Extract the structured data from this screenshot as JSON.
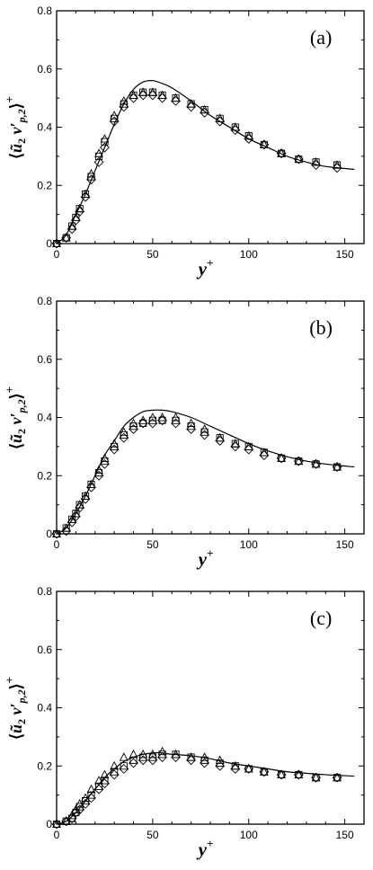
{
  "figure": {
    "panels": [
      {
        "label": "(a)",
        "xlabel": "y",
        "xlabel_sup": "+",
        "ylabel": "⟨ũ₂ v′p,2⟩⁺"
      },
      {
        "label": "(b)",
        "xlabel": "y",
        "xlabel_sup": "+",
        "ylabel": "⟨ũ₂ v′p,2⟩⁺"
      },
      {
        "label": "(c)",
        "xlabel": "y",
        "xlabel_sup": "+",
        "ylabel": "⟨ũ₂ v′p,2⟩⁺"
      }
    ]
  },
  "chart_data": [
    {
      "type": "line",
      "label": "(a)",
      "xlabel": "y+",
      "ylabel": "⟨ũ₂ v′p,2⟩+",
      "xlim": [
        0,
        160
      ],
      "ylim": [
        0,
        0.8
      ],
      "xticks": [
        "0",
        "50",
        "100",
        "150"
      ],
      "yticks": [
        "0",
        "0.2",
        "0.4",
        "0.6",
        "0.8"
      ],
      "grid": false,
      "series": [
        {
          "style": "solid line",
          "x": [
            0,
            5,
            10,
            15,
            20,
            25,
            30,
            35,
            40,
            45,
            50,
            55,
            60,
            70,
            80,
            90,
            100,
            110,
            120,
            130,
            140,
            155
          ],
          "y": [
            0,
            0.03,
            0.1,
            0.17,
            0.25,
            0.33,
            0.41,
            0.48,
            0.53,
            0.555,
            0.56,
            0.55,
            0.535,
            0.49,
            0.44,
            0.4,
            0.36,
            0.33,
            0.3,
            0.28,
            0.265,
            0.255
          ]
        },
        {
          "style": "square markers",
          "x": [
            0,
            5,
            8,
            10,
            12,
            15,
            18,
            22,
            25,
            30,
            35,
            40,
            45,
            50,
            55,
            62,
            70,
            77,
            85,
            93,
            100,
            108,
            117,
            126,
            135,
            146
          ],
          "y": [
            0,
            0.02,
            0.06,
            0.09,
            0.12,
            0.17,
            0.23,
            0.3,
            0.35,
            0.43,
            0.48,
            0.51,
            0.52,
            0.52,
            0.51,
            0.5,
            0.48,
            0.46,
            0.43,
            0.4,
            0.37,
            0.34,
            0.31,
            0.29,
            0.28,
            0.27
          ]
        },
        {
          "style": "triangle markers",
          "x": [
            0,
            5,
            8,
            10,
            12,
            15,
            18,
            22,
            25,
            30,
            35,
            40,
            45,
            50,
            55,
            62,
            70,
            77,
            85,
            93,
            100,
            108,
            117,
            126,
            135,
            146
          ],
          "y": [
            0,
            0.02,
            0.06,
            0.09,
            0.12,
            0.17,
            0.24,
            0.31,
            0.36,
            0.44,
            0.49,
            0.51,
            0.52,
            0.52,
            0.51,
            0.5,
            0.48,
            0.46,
            0.43,
            0.4,
            0.37,
            0.34,
            0.31,
            0.29,
            0.28,
            0.27
          ]
        },
        {
          "style": "diamond markers",
          "x": [
            0,
            5,
            8,
            10,
            12,
            15,
            18,
            22,
            25,
            30,
            35,
            40,
            45,
            50,
            55,
            62,
            70,
            77,
            85,
            93,
            100,
            108,
            117,
            126,
            135,
            146
          ],
          "y": [
            0,
            0.02,
            0.05,
            0.08,
            0.11,
            0.16,
            0.22,
            0.28,
            0.33,
            0.42,
            0.47,
            0.5,
            0.51,
            0.51,
            0.5,
            0.49,
            0.47,
            0.45,
            0.42,
            0.39,
            0.36,
            0.34,
            0.31,
            0.29,
            0.27,
            0.26
          ]
        }
      ]
    },
    {
      "type": "line",
      "label": "(b)",
      "xlabel": "y+",
      "ylabel": "⟨ũ₂ v′p,2⟩+",
      "xlim": [
        0,
        160
      ],
      "ylim": [
        0,
        0.8
      ],
      "xticks": [
        "0",
        "50",
        "100",
        "150"
      ],
      "yticks": [
        "0",
        "0.2",
        "0.4",
        "0.6",
        "0.8"
      ],
      "grid": false,
      "series": [
        {
          "style": "solid line",
          "x": [
            0,
            5,
            10,
            15,
            20,
            25,
            30,
            35,
            40,
            45,
            50,
            55,
            60,
            70,
            80,
            90,
            100,
            110,
            120,
            130,
            140,
            155
          ],
          "y": [
            0,
            0.02,
            0.07,
            0.13,
            0.2,
            0.27,
            0.32,
            0.37,
            0.4,
            0.42,
            0.425,
            0.425,
            0.42,
            0.4,
            0.37,
            0.34,
            0.31,
            0.285,
            0.265,
            0.25,
            0.24,
            0.23
          ]
        },
        {
          "style": "square markers",
          "x": [
            0,
            5,
            8,
            10,
            12,
            15,
            18,
            22,
            25,
            30,
            35,
            40,
            45,
            50,
            55,
            62,
            70,
            77,
            85,
            93,
            100,
            108,
            117,
            126,
            135,
            146
          ],
          "y": [
            0,
            0.02,
            0.05,
            0.07,
            0.1,
            0.13,
            0.17,
            0.21,
            0.25,
            0.3,
            0.34,
            0.37,
            0.38,
            0.39,
            0.39,
            0.39,
            0.37,
            0.35,
            0.33,
            0.31,
            0.3,
            0.28,
            0.26,
            0.25,
            0.24,
            0.23
          ]
        },
        {
          "style": "triangle markers",
          "x": [
            0,
            5,
            8,
            10,
            12,
            15,
            18,
            22,
            25,
            30,
            35,
            40,
            45,
            50,
            55,
            62,
            70,
            77,
            85,
            93,
            100,
            108,
            117,
            126,
            135,
            146
          ],
          "y": [
            0,
            0.02,
            0.05,
            0.07,
            0.1,
            0.13,
            0.17,
            0.22,
            0.26,
            0.31,
            0.35,
            0.38,
            0.39,
            0.4,
            0.4,
            0.4,
            0.38,
            0.36,
            0.33,
            0.31,
            0.3,
            0.28,
            0.26,
            0.25,
            0.24,
            0.23
          ]
        },
        {
          "style": "diamond markers",
          "x": [
            0,
            5,
            8,
            10,
            12,
            15,
            18,
            22,
            25,
            30,
            35,
            40,
            45,
            50,
            55,
            62,
            70,
            77,
            85,
            93,
            100,
            108,
            117,
            126,
            135,
            146
          ],
          "y": [
            0,
            0.01,
            0.04,
            0.06,
            0.09,
            0.12,
            0.16,
            0.2,
            0.24,
            0.29,
            0.33,
            0.36,
            0.38,
            0.38,
            0.39,
            0.38,
            0.36,
            0.34,
            0.32,
            0.3,
            0.29,
            0.27,
            0.26,
            0.25,
            0.24,
            0.23
          ]
        }
      ]
    },
    {
      "type": "line",
      "label": "(c)",
      "xlabel": "y+",
      "ylabel": "⟨ũ₂ v′p,2⟩+",
      "xlim": [
        0,
        160
      ],
      "ylim": [
        0,
        0.8
      ],
      "xticks": [
        "0",
        "50",
        "100",
        "150"
      ],
      "yticks": [
        "0",
        "0.2",
        "0.4",
        "0.6",
        "0.8"
      ],
      "grid": false,
      "series": [
        {
          "style": "solid line",
          "x": [
            0,
            5,
            10,
            15,
            20,
            25,
            30,
            35,
            40,
            45,
            50,
            55,
            60,
            70,
            80,
            90,
            100,
            110,
            120,
            130,
            140,
            155
          ],
          "y": [
            0,
            0.01,
            0.04,
            0.08,
            0.12,
            0.16,
            0.19,
            0.215,
            0.23,
            0.24,
            0.245,
            0.245,
            0.24,
            0.235,
            0.225,
            0.21,
            0.2,
            0.19,
            0.18,
            0.175,
            0.17,
            0.165
          ]
        },
        {
          "style": "square markers",
          "x": [
            0,
            5,
            8,
            10,
            12,
            15,
            18,
            22,
            25,
            30,
            35,
            40,
            45,
            50,
            55,
            62,
            70,
            77,
            85,
            93,
            100,
            108,
            117,
            126,
            135,
            146
          ],
          "y": [
            0,
            0.01,
            0.02,
            0.04,
            0.06,
            0.08,
            0.1,
            0.13,
            0.15,
            0.18,
            0.2,
            0.22,
            0.23,
            0.23,
            0.24,
            0.24,
            0.23,
            0.22,
            0.21,
            0.2,
            0.19,
            0.18,
            0.17,
            0.17,
            0.16,
            0.16
          ]
        },
        {
          "style": "triangle markers",
          "x": [
            0,
            5,
            8,
            10,
            12,
            15,
            18,
            22,
            25,
            30,
            35,
            40,
            45,
            50,
            55,
            62,
            70,
            77,
            85,
            93,
            100,
            108,
            117,
            126,
            135,
            146
          ],
          "y": [
            0,
            0.01,
            0.03,
            0.05,
            0.07,
            0.09,
            0.12,
            0.15,
            0.17,
            0.2,
            0.23,
            0.24,
            0.24,
            0.24,
            0.25,
            0.24,
            0.23,
            0.23,
            0.22,
            0.2,
            0.19,
            0.18,
            0.17,
            0.17,
            0.16,
            0.16
          ]
        },
        {
          "style": "diamond markers",
          "x": [
            0,
            5,
            8,
            10,
            12,
            15,
            18,
            22,
            25,
            30,
            35,
            40,
            45,
            50,
            55,
            62,
            70,
            77,
            85,
            93,
            100,
            108,
            117,
            126,
            135,
            146
          ],
          "y": [
            0,
            0.01,
            0.02,
            0.04,
            0.05,
            0.07,
            0.09,
            0.12,
            0.14,
            0.17,
            0.19,
            0.21,
            0.22,
            0.22,
            0.23,
            0.23,
            0.22,
            0.21,
            0.2,
            0.19,
            0.19,
            0.18,
            0.17,
            0.17,
            0.16,
            0.16
          ]
        }
      ]
    }
  ]
}
